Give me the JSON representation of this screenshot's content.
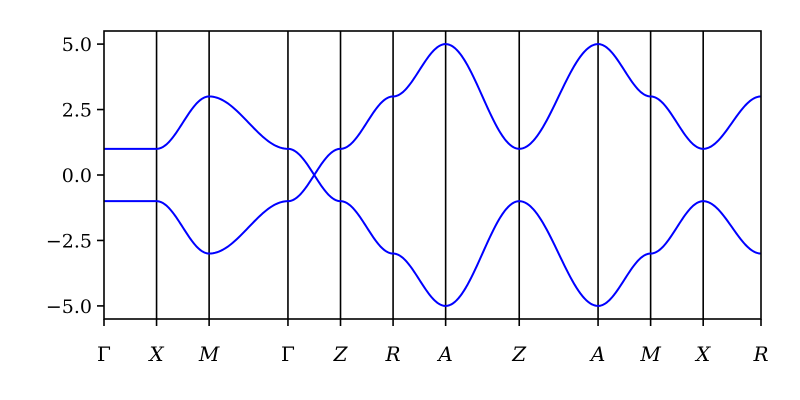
{
  "chart_data": {
    "type": "line",
    "title": "",
    "xlabel": "",
    "ylabel": "",
    "xlim": [
      0,
      12.5
    ],
    "ylim": [
      -5.5,
      5.5
    ],
    "grid": false,
    "legend": "none",
    "path_ticks": [
      {
        "x": 0.0,
        "label": "Γ",
        "italic": false
      },
      {
        "x": 1.0,
        "label": "X",
        "italic": true
      },
      {
        "x": 2.0,
        "label": "M",
        "italic": true
      },
      {
        "x": 3.5,
        "label": "Γ",
        "italic": false
      },
      {
        "x": 4.5,
        "label": "Z",
        "italic": true
      },
      {
        "x": 5.5,
        "label": "R",
        "italic": true
      },
      {
        "x": 6.5,
        "label": "A",
        "italic": true
      },
      {
        "x": 7.9,
        "label": "Z",
        "italic": true
      },
      {
        "x": 9.4,
        "label": "A",
        "italic": true
      },
      {
        "x": 10.4,
        "label": "M",
        "italic": true
      },
      {
        "x": 11.4,
        "label": "X",
        "italic": true
      },
      {
        "x": 12.5,
        "label": "R",
        "italic": true
      }
    ],
    "y_ticks": [
      {
        "value": -5.0,
        "label": "−5.0"
      },
      {
        "value": -2.5,
        "label": "−2.5"
      },
      {
        "value": 0.0,
        "label": "0.0"
      },
      {
        "value": 2.5,
        "label": "2.5"
      },
      {
        "value": 5.0,
        "label": "5.0"
      }
    ],
    "series": [
      {
        "color": "#0000ff",
        "segments": [
          {
            "x": [
              0.0,
              1.0
            ],
            "y": [
              1.0,
              1.0
            ]
          },
          {
            "x": [
              1.0,
              2.0
            ],
            "y": [
              1.0,
              3.0
            ]
          },
          {
            "x": [
              2.0,
              3.5
            ],
            "y": [
              3.0,
              1.0
            ]
          },
          {
            "x": [
              3.5,
              4.5
            ],
            "y": [
              1.0,
              -1.0
            ]
          },
          {
            "x": [
              4.5,
              5.5
            ],
            "y": [
              -1.0,
              -3.0
            ]
          },
          {
            "x": [
              5.5,
              6.5
            ],
            "y": [
              -3.0,
              -5.0
            ]
          },
          {
            "x": [
              6.5,
              7.9
            ],
            "y": [
              -5.0,
              -1.0
            ]
          },
          {
            "x": [
              7.9,
              9.4
            ],
            "y": [
              -1.0,
              -5.0
            ]
          },
          {
            "x": [
              9.4,
              10.4
            ],
            "y": [
              -5.0,
              -3.0
            ]
          },
          {
            "x": [
              10.4,
              11.4
            ],
            "y": [
              -3.0,
              -1.0
            ]
          },
          {
            "x": [
              11.4,
              12.5
            ],
            "y": [
              -1.0,
              -3.0
            ]
          }
        ]
      },
      {
        "color": "#0000ff",
        "segments": [
          {
            "x": [
              0.0,
              1.0
            ],
            "y": [
              -1.0,
              -1.0
            ]
          },
          {
            "x": [
              1.0,
              2.0
            ],
            "y": [
              -1.0,
              -3.0
            ]
          },
          {
            "x": [
              2.0,
              3.5
            ],
            "y": [
              -3.0,
              -1.0
            ]
          },
          {
            "x": [
              3.5,
              4.5
            ],
            "y": [
              -1.0,
              1.0
            ]
          },
          {
            "x": [
              4.5,
              5.5
            ],
            "y": [
              1.0,
              3.0
            ]
          },
          {
            "x": [
              5.5,
              6.5
            ],
            "y": [
              3.0,
              5.0
            ]
          },
          {
            "x": [
              6.5,
              7.9
            ],
            "y": [
              5.0,
              1.0
            ]
          },
          {
            "x": [
              7.9,
              9.4
            ],
            "y": [
              1.0,
              5.0
            ]
          },
          {
            "x": [
              9.4,
              10.4
            ],
            "y": [
              5.0,
              3.0
            ]
          },
          {
            "x": [
              10.4,
              11.4
            ],
            "y": [
              3.0,
              1.0
            ]
          },
          {
            "x": [
              11.4,
              12.5
            ],
            "y": [
              1.0,
              3.0
            ]
          }
        ]
      }
    ]
  }
}
